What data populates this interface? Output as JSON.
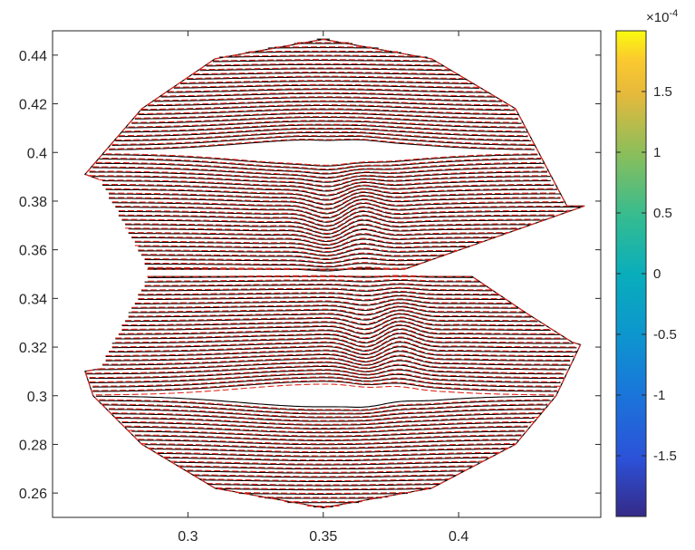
{
  "chart_data": {
    "type": "line",
    "title": "",
    "xlabel": "",
    "ylabel": "",
    "xlim": [
      0.25,
      0.4525
    ],
    "ylim": [
      0.25,
      0.45
    ],
    "x_ticks": [
      0.3,
      0.35,
      0.4
    ],
    "x_tick_labels": [
      "0.3",
      "0.35",
      "0.4"
    ],
    "y_ticks": [
      0.26,
      0.28,
      0.3,
      0.32,
      0.34,
      0.36,
      0.38,
      0.4,
      0.42,
      0.44
    ],
    "y_tick_labels": [
      "0.26",
      "0.28",
      "0.3",
      "0.32",
      "0.34",
      "0.36",
      "0.38",
      "0.4",
      "0.42",
      "0.44"
    ],
    "grid": false,
    "series": [
      {
        "style": "solid",
        "color": "#000000"
      },
      {
        "style": "dashed",
        "color": "#e0281e"
      }
    ],
    "lobes": [
      {
        "center": [
          0.35,
          0.4
        ],
        "top": 0.4465,
        "bottom": 0.3515,
        "boundary": [
          [
            0.285,
            0.352
          ],
          [
            0.38,
            0.352
          ],
          [
            0.4465,
            0.378
          ],
          [
            0.44,
            0.378
          ],
          [
            0.421,
            0.418
          ],
          [
            0.39,
            0.4385
          ],
          [
            0.35,
            0.4465
          ],
          [
            0.31,
            0.4385
          ],
          [
            0.283,
            0.418
          ],
          [
            0.262,
            0.391
          ],
          [
            0.267,
            0.389
          ]
        ],
        "shear_x": 0.358,
        "shear_y": 0.375
      },
      {
        "center": [
          0.35,
          0.3
        ],
        "top": 0.349,
        "bottom": 0.254,
        "boundary": [
          [
            0.285,
            0.349
          ],
          [
            0.405,
            0.349
          ],
          [
            0.425,
            0.334
          ],
          [
            0.442,
            0.322
          ],
          [
            0.445,
            0.321
          ],
          [
            0.436,
            0.3
          ],
          [
            0.421,
            0.28
          ],
          [
            0.39,
            0.262
          ],
          [
            0.35,
            0.254
          ],
          [
            0.31,
            0.262
          ],
          [
            0.283,
            0.28
          ],
          [
            0.265,
            0.3
          ],
          [
            0.262,
            0.31
          ],
          [
            0.267,
            0.311
          ]
        ],
        "shear_x": 0.372,
        "shear_y": 0.322
      }
    ],
    "colorbar": {
      "colormap": "parula",
      "limits": [
        -0.0002,
        0.0002
      ],
      "exponent_label": "×10",
      "exponent": "-4",
      "ticks": [
        -1.5,
        -1,
        -0.5,
        0,
        0.5,
        1,
        1.5
      ],
      "tick_labels": [
        "-1.5",
        "-1",
        "-0.5",
        "0",
        "0.5",
        "1",
        "1.5"
      ]
    }
  }
}
